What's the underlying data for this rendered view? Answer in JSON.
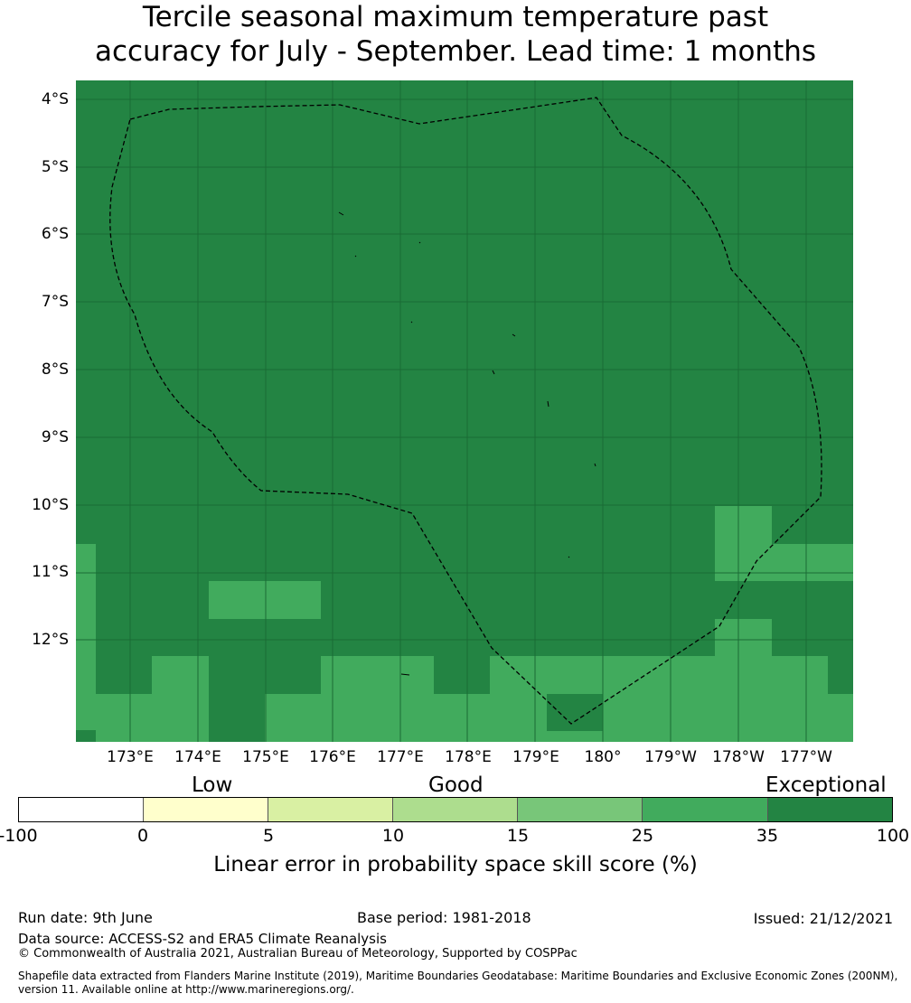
{
  "title_line1": "Tercile seasonal maximum temperature past",
  "title_line2": "accuracy for July - September. Lead time: 1 months",
  "map": {
    "background_color": "#238443",
    "lat_labels": [
      "4°S",
      "5°S",
      "6°S",
      "7°S",
      "8°S",
      "9°S",
      "10°S",
      "11°S",
      "12°S"
    ],
    "lon_labels": [
      "173°E",
      "174°E",
      "175°E",
      "176°E",
      "177°E",
      "178°E",
      "179°E",
      "180°",
      "179°W",
      "178°W",
      "177°W"
    ],
    "boundary_style": "dashed black EEZ line",
    "gridlines": true
  },
  "colorbar": {
    "categories": [
      "Low",
      "Good",
      "Exceptional"
    ],
    "ticks": [
      "-100",
      "0",
      "5",
      "10",
      "15",
      "25",
      "35",
      "100"
    ],
    "colors": [
      "#ffffff",
      "#ffffcc",
      "#d9f0a3",
      "#addd8e",
      "#78c679",
      "#41ab5d",
      "#238443"
    ],
    "title": "Linear error in probability space skill score (%)"
  },
  "footer": {
    "run_date": "Run date: 9th June",
    "base_period": "Base period: 1981-2018",
    "issued": "Issued: 21/12/2021",
    "data_source": "Data source: ACCESS-S2 and ERA5 Climate Reanalysis",
    "copyright": "© Commonwealth of Australia 2021, Australian Bureau of Meteorology, Supported by COSPPac",
    "shapefile": "Shapefile data extracted from Flanders Marine Institute (2019), Maritime Boundaries Geodatabase: Maritime Boundaries and Exclusive Economic Zones (200NM), version 11. Available online at http://www.marineregions.org/."
  }
}
